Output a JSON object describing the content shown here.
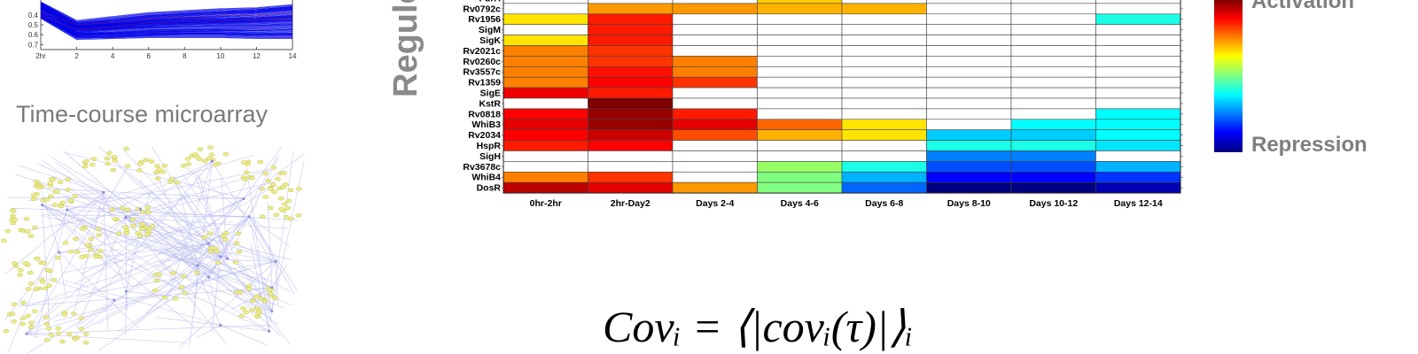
{
  "time_course": {
    "caption": "Time-course microarray",
    "y_ticks": [
      "0.7",
      "0.6",
      "0.5",
      "0.4"
    ],
    "x_ticks": [
      "2hr",
      "2",
      "4",
      "6",
      "8",
      "10",
      "12",
      "14"
    ],
    "line_color": "#0000e6"
  },
  "network": {
    "node_color": "#ecec8a",
    "edge_color": "#b8b8f0"
  },
  "heatmap": {
    "ylabel": "Regulon",
    "grid_color": "#444444"
  },
  "colorbar": {
    "activation_label": "Activation",
    "repression_label": "Repression"
  },
  "formula": {
    "text": "Covᵢ = ⟨|covᵢ(τ)|⟩ᵢ"
  },
  "chart_data": [
    {
      "type": "line",
      "x": [
        0,
        2,
        4,
        6,
        8,
        10,
        12,
        14
      ],
      "xtick_labels": [
        "2hr",
        "2",
        "4",
        "6",
        "8",
        "10",
        "12",
        "14"
      ],
      "ylim": [
        0.35,
        0.85
      ],
      "yticks": [
        0.4,
        0.5,
        0.6,
        0.7
      ],
      "series_summary": "many expression profiles",
      "series": [
        {
          "values": [
            0.82,
            0.62,
            0.66,
            0.7,
            0.72,
            0.74,
            0.75,
            0.78
          ]
        },
        {
          "values": [
            0.78,
            0.58,
            0.6,
            0.64,
            0.65,
            0.66,
            0.67,
            0.7
          ]
        },
        {
          "values": [
            0.75,
            0.55,
            0.58,
            0.6,
            0.61,
            0.62,
            0.62,
            0.63
          ]
        },
        {
          "values": [
            0.72,
            0.52,
            0.54,
            0.56,
            0.56,
            0.57,
            0.57,
            0.58
          ]
        },
        {
          "values": [
            0.7,
            0.5,
            0.5,
            0.52,
            0.53,
            0.53,
            0.52,
            0.53
          ]
        },
        {
          "values": [
            0.68,
            0.48,
            0.49,
            0.5,
            0.5,
            0.5,
            0.49,
            0.49
          ]
        },
        {
          "values": [
            0.8,
            0.6,
            0.63,
            0.67,
            0.69,
            0.71,
            0.73,
            0.76
          ]
        },
        {
          "values": [
            0.77,
            0.57,
            0.59,
            0.62,
            0.63,
            0.64,
            0.65,
            0.67
          ]
        }
      ]
    },
    {
      "type": "heatmap",
      "ylabel": "Regulon",
      "columns": [
        "0hr-2hr",
        "2hr-Day2",
        "Days 2-4",
        "Days 4-6",
        "Days 6-8",
        "Days 8-10",
        "Days 10-12",
        "Days 12-14"
      ],
      "rows": [
        "FurA",
        "Rv0792c",
        "Rv1956",
        "SigM",
        "SigK",
        "Rv2021c",
        "Rv0260c",
        "Rv3557c",
        "Rv1359",
        "SigE",
        "KstR",
        "Rv0818",
        "WhiB3",
        "Rv2034",
        "HspR",
        "SigH",
        "Rv3678c",
        "WhiB4",
        "DosR"
      ],
      "scale": "activation = 1, repression = -1, null = blank",
      "values": [
        [
          null,
          null,
          null,
          0.35,
          null,
          null,
          null,
          null
        ],
        [
          null,
          0.45,
          0.45,
          0.4,
          0.4,
          null,
          null,
          null
        ],
        [
          0.3,
          0.7,
          null,
          null,
          null,
          null,
          null,
          -0.2
        ],
        [
          null,
          0.7,
          null,
          null,
          null,
          null,
          null,
          null
        ],
        [
          0.3,
          0.7,
          null,
          null,
          null,
          null,
          null,
          null
        ],
        [
          0.5,
          0.65,
          null,
          null,
          null,
          null,
          null,
          null
        ],
        [
          0.5,
          0.65,
          0.5,
          null,
          null,
          null,
          null,
          null
        ],
        [
          0.5,
          0.72,
          0.5,
          null,
          null,
          null,
          null,
          null
        ],
        [
          0.5,
          0.75,
          0.65,
          null,
          null,
          null,
          null,
          null
        ],
        [
          0.78,
          0.7,
          null,
          null,
          null,
          null,
          null,
          null
        ],
        [
          null,
          1.0,
          null,
          null,
          null,
          null,
          null,
          null
        ],
        [
          0.75,
          0.95,
          0.7,
          null,
          null,
          null,
          null,
          -0.25
        ],
        [
          0.8,
          0.95,
          0.8,
          0.55,
          0.3,
          null,
          -0.25,
          -0.25
        ],
        [
          0.75,
          0.85,
          0.6,
          0.4,
          0.3,
          -0.35,
          -0.35,
          -0.25
        ],
        [
          0.7,
          0.75,
          null,
          null,
          null,
          -0.2,
          -0.2,
          -0.3
        ],
        [
          null,
          null,
          null,
          null,
          null,
          -0.5,
          -0.5,
          null
        ],
        [
          null,
          null,
          null,
          0.05,
          -0.2,
          -0.6,
          -0.6,
          -0.4
        ],
        [
          0.5,
          0.65,
          null,
          0.0,
          -0.4,
          -0.75,
          -0.75,
          -0.65
        ],
        [
          0.88,
          0.8,
          0.45,
          0.0,
          -0.55,
          -1.0,
          -1.0,
          -0.9
        ]
      ]
    }
  ]
}
